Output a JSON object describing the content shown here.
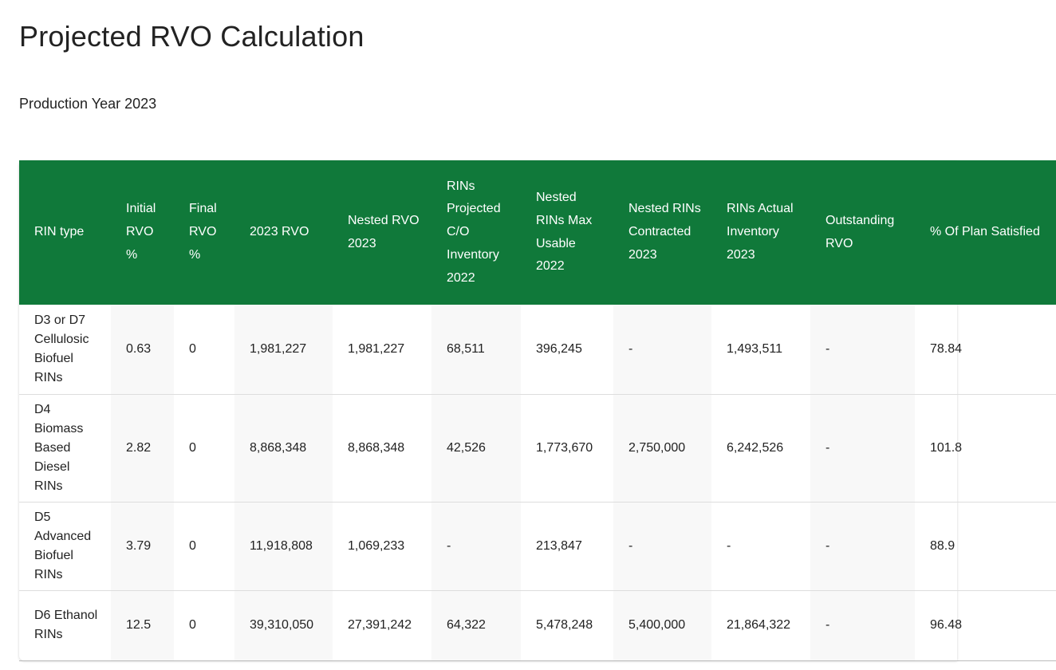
{
  "page": {
    "title": "Projected RVO Calculation",
    "subtitle": "Production Year 2023"
  },
  "table": {
    "columns": [
      "RIN type",
      "Initial RVO %",
      "Final RVO %",
      "2023 RVO",
      "Nested RVO 2023",
      "RINs Projected C/O Inventory 2022",
      "Nested RINs Max Usable 2022",
      "Nested RINs Contracted 2023",
      "RINs Actual Inventory 2023",
      "Outstanding RVO",
      "% Of Plan Satisfied"
    ],
    "rows": [
      {
        "rin_type": "D3 or D7 Cellulosic Biofuel RINs",
        "initial_rvo_pct": "0.63",
        "final_rvo_pct": "0",
        "rvo_2023": "1,981,227",
        "nested_rvo_2023": "1,981,227",
        "projected_co_inventory_2022": "68,511",
        "nested_max_usable_2022": "396,245",
        "nested_contracted_2023": "-",
        "actual_inventory_2023": "1,493,511",
        "outstanding_rvo": "-",
        "pct_plan_satisfied": "78.84"
      },
      {
        "rin_type": "D4 Biomass Based Diesel RINs",
        "initial_rvo_pct": "2.82",
        "final_rvo_pct": "0",
        "rvo_2023": "8,868,348",
        "nested_rvo_2023": "8,868,348",
        "projected_co_inventory_2022": "42,526",
        "nested_max_usable_2022": "1,773,670",
        "nested_contracted_2023": "2,750,000",
        "actual_inventory_2023": "6,242,526",
        "outstanding_rvo": "-",
        "pct_plan_satisfied": "101.8"
      },
      {
        "rin_type": "D5 Advanced Biofuel RINs",
        "initial_rvo_pct": "3.79",
        "final_rvo_pct": "0",
        "rvo_2023": "11,918,808",
        "nested_rvo_2023": "1,069,233",
        "projected_co_inventory_2022": "-",
        "nested_max_usable_2022": "213,847",
        "nested_contracted_2023": "-",
        "actual_inventory_2023": "-",
        "outstanding_rvo": "-",
        "pct_plan_satisfied": "88.9"
      },
      {
        "rin_type": "D6 Ethanol RINs",
        "initial_rvo_pct": "12.5",
        "final_rvo_pct": "0",
        "rvo_2023": "39,310,050",
        "nested_rvo_2023": "27,391,242",
        "projected_co_inventory_2022": "64,322",
        "nested_max_usable_2022": "5,478,248",
        "nested_contracted_2023": "5,400,000",
        "actual_inventory_2023": "21,864,322",
        "outstanding_rvo": "-",
        "pct_plan_satisfied": "96.48"
      }
    ]
  }
}
